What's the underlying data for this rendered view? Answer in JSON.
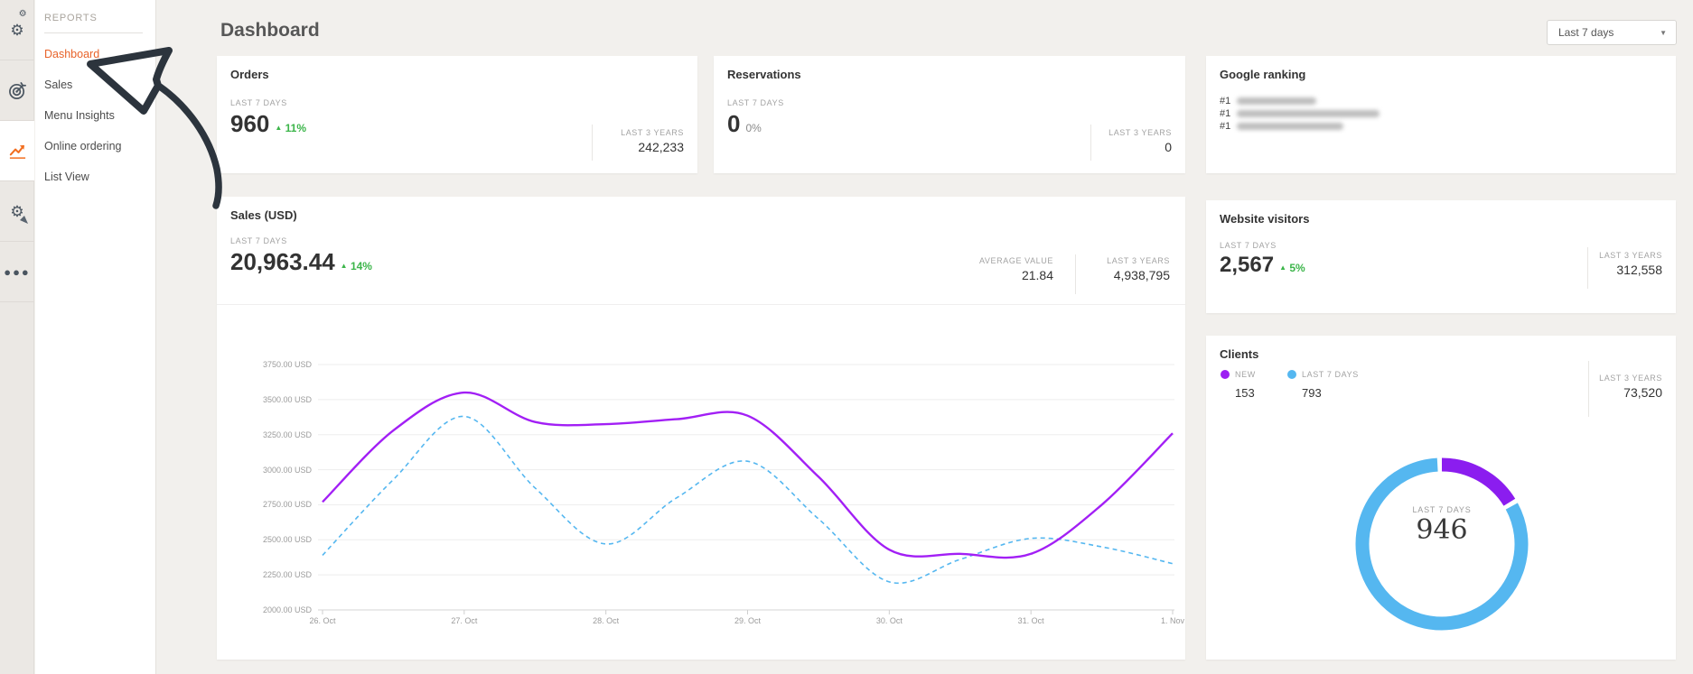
{
  "colors": {
    "accent_orange": "#e8632a",
    "green_up": "#3cb54a",
    "purple": "#9c1ff2",
    "blue": "#55b7f0",
    "donut_purple": "#8b1def",
    "page_bg": "#f2f0ed"
  },
  "rail": {
    "icons": [
      "settings-gears",
      "target-goal",
      "analytics-chart",
      "gear-pointer",
      "more-dots"
    ],
    "active_icon": "analytics-chart"
  },
  "sidebar": {
    "section_title": "REPORTS",
    "items": [
      {
        "label": "Dashboard",
        "active": true
      },
      {
        "label": "Sales",
        "active": false
      },
      {
        "label": "Menu Insights",
        "active": false
      },
      {
        "label": "Online ordering",
        "active": false
      },
      {
        "label": "List View",
        "active": false
      }
    ]
  },
  "header": {
    "title": "Dashboard",
    "date_range": "Last 7 days"
  },
  "cards": {
    "orders": {
      "title": "Orders",
      "period_label": "LAST 7 DAYS",
      "value": "960",
      "delta": "11%",
      "delta_direction": "up",
      "secondary_label": "LAST 3 YEARS",
      "secondary_value": "242,233"
    },
    "reservations": {
      "title": "Reservations",
      "period_label": "LAST 7 DAYS",
      "value": "0",
      "delta": "0%",
      "delta_direction": "flat",
      "secondary_label": "LAST 3 YEARS",
      "secondary_value": "0"
    },
    "google_ranking": {
      "title": "Google ranking",
      "entries": [
        {
          "rank": "#1"
        },
        {
          "rank": "#1"
        },
        {
          "rank": "#1"
        }
      ]
    },
    "sales": {
      "title": "Sales (USD)",
      "period_label": "LAST 7 DAYS",
      "value": "20,963.44",
      "delta": "14%",
      "delta_direction": "up",
      "avg_label": "AVERAGE VALUE",
      "avg_value": "21.84",
      "secondary_label": "LAST 3 YEARS",
      "secondary_value": "4,938,795"
    },
    "website_visitors": {
      "title": "Website visitors",
      "period_label": "LAST 7 DAYS",
      "value": "2,567",
      "delta": "5%",
      "delta_direction": "up",
      "secondary_label": "LAST 3 YEARS",
      "secondary_value": "312,558"
    },
    "clients": {
      "title": "Clients",
      "legend": [
        {
          "label": "NEW",
          "value": "153",
          "color": "#9c1ff2"
        },
        {
          "label": "LAST 7 DAYS",
          "value": "793",
          "color": "#55b7f0"
        }
      ],
      "secondary_label": "LAST 3 YEARS",
      "secondary_value": "73,520",
      "donut": {
        "center_label": "LAST 7 DAYS",
        "center_value": "946",
        "segments": [
          {
            "name": "new",
            "value": 153,
            "color": "#8b1def"
          },
          {
            "name": "last-7-days",
            "value": 793,
            "color": "#55b7f0"
          }
        ]
      }
    }
  },
  "chart_data": {
    "type": "line",
    "title": "Sales (USD)",
    "xlabel": "",
    "ylabel": "USD",
    "ylim": [
      2000,
      3750
    ],
    "grid": true,
    "legend_position": "none",
    "x_tick_labels": [
      "26. Oct",
      "27. Oct",
      "28. Oct",
      "29. Oct",
      "30. Oct",
      "31. Oct",
      "1. Nov"
    ],
    "y_tick_labels": [
      "3750.00 USD",
      "3500.00 USD",
      "3250.00 USD",
      "3000.00 USD",
      "2750.00 USD",
      "2500.00 USD",
      "2250.00 USD",
      "2000.00 USD"
    ],
    "x_step_days": 0.5,
    "series": [
      {
        "name": "sales-current-period",
        "color": "#a21ff5",
        "style": "solid",
        "values": [
          2770,
          3280,
          3550,
          3340,
          3325,
          3360,
          3385,
          2950,
          2430,
          2400,
          2400,
          2750,
          3260
        ]
      },
      {
        "name": "sales-previous-period",
        "color": "#55b7f0",
        "style": "dashed",
        "values": [
          2390,
          2930,
          3380,
          2870,
          2470,
          2800,
          3060,
          2650,
          2200,
          2360,
          2510,
          2450,
          2330
        ]
      }
    ]
  }
}
